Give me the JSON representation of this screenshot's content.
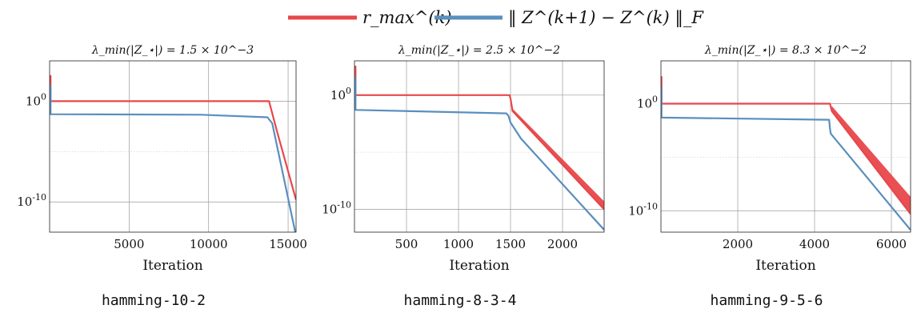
{
  "legend": {
    "placement": "top-center",
    "items": [
      {
        "label": "r_max^(k)",
        "color": "#e8474a"
      },
      {
        "label": "‖ Z^(k+1) − Z^(k) ‖_F",
        "color": "#5a8fbe"
      }
    ]
  },
  "chart_data": [
    {
      "type": "line",
      "name": "hamming-10-2",
      "title": "λ_min(|Z_⋆|) = 1.5 × 10^−3",
      "xlabel": "Iteration",
      "ylabel": "",
      "yscale": "log",
      "grid": true,
      "xlim": [
        0,
        15500
      ],
      "ylim_exp": [
        -13,
        4
      ],
      "xticks": [
        5000,
        10000,
        15000
      ],
      "xtick_labels": [
        "5000",
        "10000",
        "15000"
      ],
      "yticks_exp": [
        0,
        -10
      ],
      "series": [
        {
          "name": "r_max^(k)",
          "band_exp": 0,
          "points": [
            [
              0,
              2.5
            ],
            [
              60,
              2.5
            ],
            [
              60,
              0
            ],
            [
              13800,
              0
            ],
            [
              14300,
              -3
            ],
            [
              15500,
              -9.8
            ]
          ]
        },
        {
          "name": "‖ Z^(k+1) − Z^(k) ‖_F",
          "band_exp": 0,
          "points": [
            [
              0,
              1.5
            ],
            [
              60,
              1.5
            ],
            [
              60,
              -1.3
            ],
            [
              9500,
              -1.35
            ],
            [
              13700,
              -1.6
            ],
            [
              14000,
              -2.2
            ],
            [
              15450,
              -13
            ]
          ]
        }
      ]
    },
    {
      "type": "line",
      "name": "hamming-8-3-4",
      "title": "λ_min(|Z_⋆|) = 2.5 × 10^−2",
      "xlabel": "Iteration",
      "ylabel": "",
      "yscale": "log",
      "grid": true,
      "xlim": [
        0,
        2400
      ],
      "ylim_exp": [
        -12,
        3
      ],
      "xticks": [
        500,
        1000,
        1500,
        2000
      ],
      "xtick_labels": [
        "500",
        "1000",
        "1500",
        "2000"
      ],
      "yticks_exp": [
        0,
        -10
      ],
      "series": [
        {
          "name": "r_max^(k)",
          "band_exp": 0.7,
          "points": [
            [
              0,
              2.5
            ],
            [
              10,
              2.5
            ],
            [
              10,
              0
            ],
            [
              1490,
              0
            ],
            [
              1500,
              -0.3
            ],
            [
              1520,
              -1.4
            ],
            [
              2400,
              -10
            ]
          ]
        },
        {
          "name": "‖ Z^(k+1) − Z^(k) ‖_F",
          "band_exp": 0.12,
          "points": [
            [
              0,
              1.5
            ],
            [
              10,
              1.5
            ],
            [
              10,
              -1.3
            ],
            [
              1460,
              -1.6
            ],
            [
              1480,
              -1.8
            ],
            [
              1500,
              -2.4
            ],
            [
              1600,
              -3.8
            ],
            [
              2400,
              -11.8
            ]
          ]
        }
      ]
    },
    {
      "type": "line",
      "name": "hamming-9-5-6",
      "title": "λ_min(|Z_⋆|) = 8.3 × 10^−2",
      "xlabel": "Iteration",
      "ylabel": "",
      "yscale": "log",
      "grid": true,
      "xlim": [
        0,
        6500
      ],
      "ylim_exp": [
        -12,
        4
      ],
      "xticks": [
        2000,
        4000,
        6000
      ],
      "xtick_labels": [
        "2000",
        "4000",
        "6000"
      ],
      "yticks_exp": [
        0,
        -10
      ],
      "series": [
        {
          "name": "r_max^(k)",
          "band_exp": 1.6,
          "points": [
            [
              0,
              2.5
            ],
            [
              15,
              2.5
            ],
            [
              15,
              0
            ],
            [
              4400,
              0
            ],
            [
              4450,
              -0.7
            ],
            [
              6500,
              -10.3
            ]
          ]
        },
        {
          "name": "‖ Z^(k+1) − Z^(k) ‖_F",
          "band_exp": 0.12,
          "points": [
            [
              0,
              1.5
            ],
            [
              15,
              1.5
            ],
            [
              15,
              -1.3
            ],
            [
              4380,
              -1.5
            ],
            [
              4400,
              -2.3
            ],
            [
              4420,
              -2.8
            ],
            [
              6500,
              -11.8
            ]
          ]
        }
      ]
    }
  ]
}
